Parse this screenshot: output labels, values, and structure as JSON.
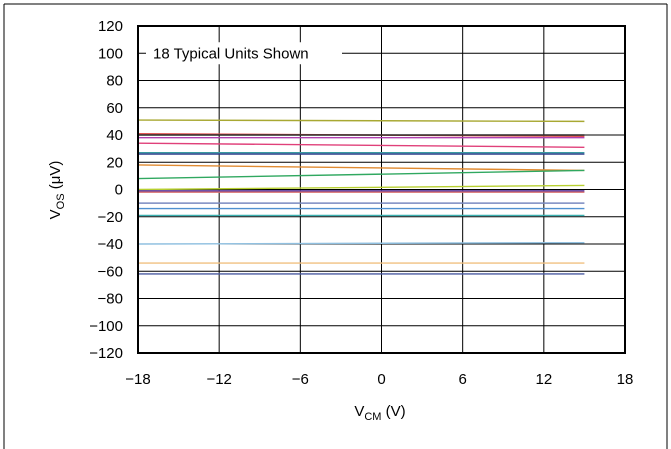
{
  "chart_data": {
    "type": "line",
    "annotation": "18 Typical Units Shown",
    "xlabel": {
      "main": "V",
      "sub": "CM",
      "unit": " (V)"
    },
    "ylabel": {
      "main": "V",
      "sub": "OS",
      "unit": " (μV)"
    },
    "xlim": [
      -18,
      18
    ],
    "ylim": [
      -120,
      120
    ],
    "x_ticks": [
      -18,
      -12,
      -6,
      0,
      6,
      12,
      18
    ],
    "x_tick_labels": [
      "−18",
      "−12",
      "−6",
      "0",
      "6",
      "12",
      "18"
    ],
    "y_ticks": [
      120,
      100,
      80,
      60,
      40,
      20,
      0,
      -20,
      -40,
      -60,
      -80,
      -100,
      -120
    ],
    "y_tick_labels": [
      "120",
      "100",
      "80",
      "60",
      "40",
      "20",
      "0",
      "−20",
      "−40",
      "−60",
      "−80",
      "−100",
      "−120"
    ],
    "grid": true,
    "x": [
      -18,
      15
    ],
    "series": [
      {
        "color": "#a8a832",
        "values": [
          51,
          50
        ]
      },
      {
        "color": "#e05050",
        "values": [
          41,
          39
        ]
      },
      {
        "color": "#2a2a2a",
        "values": [
          40,
          40
        ]
      },
      {
        "color": "#b040b0",
        "values": [
          38,
          38
        ]
      },
      {
        "color": "#e0407a",
        "values": [
          34,
          31
        ]
      },
      {
        "color": "#3a9aa0",
        "values": [
          27,
          27
        ]
      },
      {
        "color": "#2b3a8a",
        "values": [
          26,
          26
        ]
      },
      {
        "color": "#e08a30",
        "values": [
          18,
          14
        ]
      },
      {
        "color": "#30a860",
        "values": [
          8,
          14
        ]
      },
      {
        "color": "#b8d030",
        "values": [
          0,
          3
        ]
      },
      {
        "color": "#5a3aa0",
        "values": [
          -1,
          -1
        ]
      },
      {
        "color": "#d87070",
        "values": [
          -2,
          -2
        ]
      },
      {
        "color": "#7a8ac0",
        "values": [
          -10,
          -10
        ]
      },
      {
        "color": "#5090d0",
        "values": [
          -14,
          -14
        ]
      },
      {
        "color": "#3ab0b0",
        "values": [
          -19,
          -19
        ]
      },
      {
        "color": "#90c0e0",
        "values": [
          -40,
          -39
        ]
      },
      {
        "color": "#f0c080",
        "values": [
          -54,
          -54
        ]
      },
      {
        "color": "#4a5aa0",
        "values": [
          -62,
          -62
        ]
      }
    ]
  }
}
